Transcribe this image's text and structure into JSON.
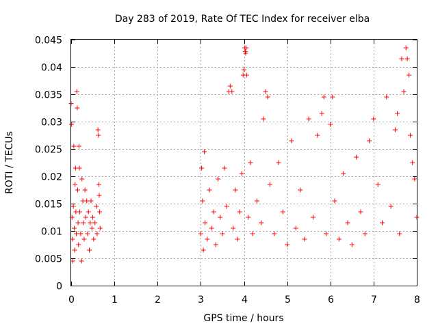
{
  "chart_data": {
    "type": "scatter",
    "title": "Day 283 of 2019, Rate Of TEC Index for receiver elba",
    "xlabel": "GPS time / hours",
    "ylabel": "ROTI / TECUs",
    "xlim": [
      0,
      8
    ],
    "ylim": [
      0,
      0.045
    ],
    "xticks": [
      "0",
      "1",
      "2",
      "3",
      "4",
      "5",
      "6",
      "7",
      "8"
    ],
    "xtick_values": [
      0,
      1,
      2,
      3,
      4,
      5,
      6,
      7,
      8
    ],
    "yticks": [
      "0",
      "0.005",
      "0.01",
      "0.015",
      "0.02",
      "0.025",
      "0.03",
      "0.035",
      "0.04",
      "0.045"
    ],
    "ytick_values": [
      0,
      0.005,
      0.01,
      0.015,
      0.02,
      0.025,
      0.03,
      0.035,
      0.04,
      0.045
    ],
    "grid": true,
    "marker": "+",
    "color": "#ff0000",
    "series": [
      {
        "name": "ROTI",
        "points": [
          [
            0.0,
            0.0333
          ],
          [
            0.01,
            0.0295
          ],
          [
            0.02,
            0.0125
          ],
          [
            0.03,
            0.0085
          ],
          [
            0.04,
            0.0045
          ],
          [
            0.05,
            0.0145
          ],
          [
            0.06,
            0.0255
          ],
          [
            0.07,
            0.0105
          ],
          [
            0.08,
            0.0065
          ],
          [
            0.09,
            0.0185
          ],
          [
            0.1,
            0.0215
          ],
          [
            0.11,
            0.0135
          ],
          [
            0.12,
            0.0095
          ],
          [
            0.13,
            0.0355
          ],
          [
            0.14,
            0.0325
          ],
          [
            0.15,
            0.0175
          ],
          [
            0.16,
            0.0115
          ],
          [
            0.17,
            0.0075
          ],
          [
            0.18,
            0.0255
          ],
          [
            0.19,
            0.0215
          ],
          [
            0.2,
            0.0135
          ],
          [
            0.22,
            0.0095
          ],
          [
            0.24,
            0.0045
          ],
          [
            0.25,
            0.0195
          ],
          [
            0.27,
            0.0155
          ],
          [
            0.28,
            0.0115
          ],
          [
            0.3,
            0.0085
          ],
          [
            0.32,
            0.0175
          ],
          [
            0.34,
            0.0125
          ],
          [
            0.36,
            0.0155
          ],
          [
            0.38,
            0.0095
          ],
          [
            0.4,
            0.0135
          ],
          [
            0.42,
            0.0065
          ],
          [
            0.44,
            0.0115
          ],
          [
            0.46,
            0.0155
          ],
          [
            0.48,
            0.0105
          ],
          [
            0.5,
            0.0125
          ],
          [
            0.52,
            0.0085
          ],
          [
            0.55,
            0.0115
          ],
          [
            0.58,
            0.0145
          ],
          [
            0.6,
            0.0095
          ],
          [
            0.62,
            0.0285
          ],
          [
            0.63,
            0.0275
          ],
          [
            0.64,
            0.0185
          ],
          [
            0.65,
            0.0165
          ],
          [
            0.66,
            0.0135
          ],
          [
            0.67,
            0.0105
          ]
        ],
        "gap": [
          0.68,
          2.98
        ],
        "points_b": [
          [
            3.0,
            0.0095
          ],
          [
            3.02,
            0.0215
          ],
          [
            3.04,
            0.0155
          ],
          [
            3.06,
            0.0065
          ],
          [
            3.08,
            0.0245
          ],
          [
            3.1,
            0.0115
          ],
          [
            3.15,
            0.0085
          ],
          [
            3.2,
            0.0175
          ],
          [
            3.25,
            0.0105
          ],
          [
            3.3,
            0.0135
          ],
          [
            3.35,
            0.0075
          ],
          [
            3.4,
            0.0195
          ],
          [
            3.45,
            0.0125
          ],
          [
            3.5,
            0.0095
          ],
          [
            3.55,
            0.0215
          ],
          [
            3.6,
            0.0145
          ],
          [
            3.65,
            0.0355
          ],
          [
            3.68,
            0.0365
          ],
          [
            3.72,
            0.0355
          ],
          [
            3.75,
            0.0105
          ],
          [
            3.8,
            0.0175
          ],
          [
            3.85,
            0.0085
          ],
          [
            3.9,
            0.0135
          ],
          [
            3.95,
            0.0205
          ],
          [
            3.98,
            0.0385
          ],
          [
            4.0,
            0.0395
          ],
          [
            4.02,
            0.0435
          ],
          [
            4.03,
            0.0428
          ],
          [
            4.04,
            0.0425
          ],
          [
            4.05,
            0.0435
          ],
          [
            4.06,
            0.0385
          ],
          [
            4.1,
            0.0125
          ],
          [
            4.15,
            0.0225
          ],
          [
            4.2,
            0.0095
          ],
          [
            4.3,
            0.0155
          ],
          [
            4.4,
            0.0115
          ],
          [
            4.45,
            0.0305
          ],
          [
            4.5,
            0.0355
          ],
          [
            4.55,
            0.0345
          ],
          [
            4.6,
            0.0185
          ],
          [
            4.7,
            0.0095
          ],
          [
            4.8,
            0.0225
          ],
          [
            4.9,
            0.0135
          ],
          [
            5.0,
            0.0075
          ],
          [
            5.1,
            0.0265
          ],
          [
            5.2,
            0.0105
          ],
          [
            5.3,
            0.0175
          ],
          [
            5.4,
            0.0085
          ],
          [
            5.5,
            0.0305
          ],
          [
            5.6,
            0.0125
          ],
          [
            5.7,
            0.0275
          ],
          [
            5.8,
            0.0315
          ],
          [
            5.85,
            0.0345
          ],
          [
            5.9,
            0.0095
          ],
          [
            6.0,
            0.0295
          ],
          [
            6.05,
            0.0345
          ],
          [
            6.1,
            0.0155
          ],
          [
            6.2,
            0.0085
          ],
          [
            6.3,
            0.0205
          ],
          [
            6.4,
            0.0115
          ],
          [
            6.5,
            0.0075
          ],
          [
            6.6,
            0.0235
          ],
          [
            6.7,
            0.0135
          ],
          [
            6.8,
            0.0095
          ],
          [
            6.9,
            0.0265
          ],
          [
            7.0,
            0.0305
          ],
          [
            7.1,
            0.0185
          ],
          [
            7.2,
            0.0115
          ],
          [
            7.3,
            0.0345
          ],
          [
            7.4,
            0.0145
          ],
          [
            7.5,
            0.0285
          ],
          [
            7.55,
            0.0315
          ],
          [
            7.6,
            0.0095
          ],
          [
            7.65,
            0.0415
          ],
          [
            7.7,
            0.0355
          ],
          [
            7.75,
            0.0435
          ],
          [
            7.78,
            0.0415
          ],
          [
            7.82,
            0.0385
          ],
          [
            7.85,
            0.0275
          ],
          [
            7.9,
            0.0225
          ],
          [
            7.95,
            0.0195
          ],
          [
            8.0,
            0.0125
          ]
        ]
      }
    ]
  }
}
